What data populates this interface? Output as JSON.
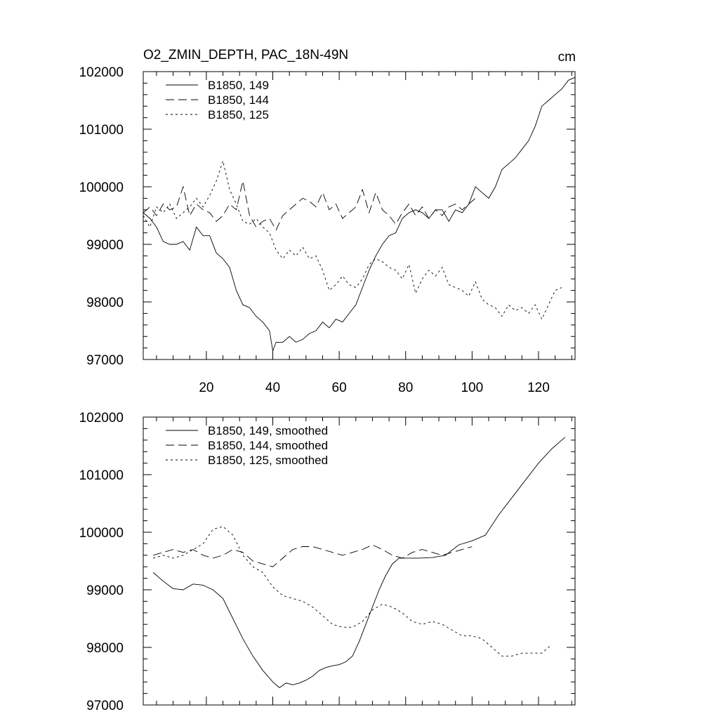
{
  "chart_data": [
    {
      "type": "line",
      "title": "O2_ZMIN_DEPTH, PAC_18N-49N",
      "units": "cm",
      "xlim": [
        1,
        131
      ],
      "ylim": [
        97000,
        102000
      ],
      "xticks": [
        20,
        40,
        60,
        80,
        100,
        120
      ],
      "yticks": [
        97000,
        98000,
        99000,
        100000,
        101000,
        102000
      ],
      "legend_position": "top-left",
      "series": [
        {
          "name": "B1850, 149",
          "style": "solid",
          "x": [
            1,
            3,
            5,
            7,
            9,
            11,
            13,
            15,
            17,
            19,
            21,
            23,
            25,
            27,
            29,
            31,
            33,
            35,
            37,
            39,
            40,
            41,
            43,
            45,
            47,
            49,
            51,
            53,
            55,
            57,
            59,
            61,
            63,
            65,
            67,
            69,
            71,
            73,
            75,
            77,
            79,
            81,
            83,
            85,
            87,
            89,
            91,
            93,
            95,
            97,
            99,
            101,
            103,
            105,
            107,
            109,
            111,
            113,
            115,
            117,
            119,
            121,
            123,
            125,
            127,
            129,
            131
          ],
          "y": [
            99550,
            99450,
            99300,
            99050,
            99000,
            99000,
            99050,
            98900,
            99300,
            99150,
            99150,
            98850,
            98750,
            98600,
            98200,
            97950,
            97900,
            97750,
            97650,
            97500,
            97150,
            97300,
            97300,
            97400,
            97300,
            97350,
            97450,
            97500,
            97650,
            97550,
            97700,
            97650,
            97800,
            97950,
            98250,
            98550,
            98800,
            99000,
            99150,
            99200,
            99450,
            99550,
            99600,
            99550,
            99450,
            99600,
            99600,
            99400,
            99600,
            99550,
            99700,
            100000,
            99900,
            99800,
            100000,
            100300,
            100400,
            100500,
            100650,
            100800,
            101050,
            101400,
            101500,
            101600,
            101700,
            101850,
            101900
          ]
        },
        {
          "name": "B1850, 144",
          "style": "dashed",
          "x": [
            1,
            3,
            5,
            7,
            9,
            11,
            13,
            15,
            17,
            19,
            21,
            23,
            25,
            27,
            29,
            31,
            33,
            35,
            37,
            39,
            41,
            43,
            45,
            47,
            49,
            51,
            53,
            55,
            57,
            59,
            61,
            63,
            65,
            67,
            69,
            71,
            73,
            75,
            77,
            79,
            81,
            83,
            85,
            87,
            89,
            91,
            93,
            95,
            97,
            99,
            101
          ],
          "y": [
            99550,
            99650,
            99500,
            99700,
            99600,
            99650,
            100000,
            99500,
            99700,
            99600,
            99550,
            99400,
            99500,
            99700,
            99600,
            100100,
            99500,
            99300,
            99400,
            99450,
            99250,
            99500,
            99600,
            99700,
            99800,
            99750,
            99650,
            99900,
            99600,
            99700,
            99450,
            99550,
            99650,
            99950,
            99550,
            99900,
            99600,
            99500,
            99350,
            99550,
            99700,
            99500,
            99650,
            99450,
            99600,
            99500,
            99650,
            99700,
            99600,
            99700,
            99800
          ]
        },
        {
          "name": "B1850, 125",
          "style": "dotted",
          "x": [
            1,
            3,
            5,
            7,
            9,
            11,
            13,
            15,
            17,
            19,
            21,
            23,
            25,
            27,
            29,
            31,
            33,
            35,
            37,
            39,
            41,
            43,
            45,
            47,
            49,
            51,
            53,
            55,
            57,
            59,
            61,
            63,
            65,
            67,
            69,
            71,
            73,
            75,
            77,
            79,
            81,
            83,
            85,
            87,
            89,
            91,
            93,
            95,
            97,
            99,
            101,
            103,
            105,
            107,
            109,
            111,
            113,
            115,
            117,
            119,
            121,
            123,
            125,
            127
          ],
          "y": [
            99500,
            99300,
            99650,
            99550,
            99700,
            99450,
            99550,
            99650,
            99800,
            99650,
            99850,
            100100,
            100450,
            99950,
            99700,
            99400,
            99350,
            99450,
            99300,
            99200,
            98900,
            98750,
            98900,
            98800,
            98950,
            98750,
            98800,
            98550,
            98200,
            98300,
            98450,
            98300,
            98250,
            98400,
            98650,
            98750,
            98700,
            98600,
            98550,
            98400,
            98650,
            98150,
            98400,
            98550,
            98450,
            98600,
            98300,
            98250,
            98200,
            98100,
            98350,
            98050,
            97950,
            97900,
            97750,
            97950,
            97850,
            97900,
            97800,
            97950,
            97700,
            97950,
            98200,
            98250
          ]
        }
      ]
    },
    {
      "type": "line",
      "title": "",
      "xlim": [
        1,
        131
      ],
      "ylim": [
        97000,
        102000
      ],
      "yticks": [
        97000,
        98000,
        99000,
        100000,
        101000,
        102000
      ],
      "legend_position": "top-left",
      "series": [
        {
          "name": "B1850, 149, smoothed",
          "style": "solid",
          "x": [
            4,
            7,
            10,
            13,
            16,
            19,
            22,
            25,
            28,
            31,
            34,
            37,
            40,
            42,
            44,
            46,
            48,
            50,
            52,
            54,
            56,
            58,
            60,
            62,
            64,
            66,
            68,
            70,
            72,
            74,
            76,
            78,
            80,
            84,
            88,
            92,
            96,
            100,
            104,
            108,
            112,
            116,
            120,
            124,
            128
          ],
          "y": [
            99300,
            99150,
            99020,
            99000,
            99100,
            99080,
            99000,
            98850,
            98500,
            98150,
            97850,
            97600,
            97400,
            97300,
            97380,
            97350,
            97380,
            97430,
            97500,
            97600,
            97650,
            97680,
            97700,
            97750,
            97850,
            98100,
            98400,
            98700,
            99000,
            99250,
            99450,
            99550,
            99550,
            99550,
            99560,
            99600,
            99780,
            99850,
            99950,
            100300,
            100600,
            100900,
            101200,
            101450,
            101650
          ]
        },
        {
          "name": "B1850, 144, smoothed",
          "style": "dashed",
          "x": [
            4,
            7,
            10,
            13,
            16,
            19,
            22,
            25,
            28,
            31,
            34,
            37,
            40,
            43,
            46,
            49,
            52,
            55,
            58,
            61,
            64,
            67,
            70,
            73,
            76,
            79,
            82,
            85,
            88,
            91,
            94,
            97,
            100
          ],
          "y": [
            99600,
            99650,
            99700,
            99650,
            99700,
            99600,
            99550,
            99600,
            99700,
            99650,
            99500,
            99450,
            99400,
            99550,
            99700,
            99750,
            99750,
            99700,
            99650,
            99600,
            99650,
            99700,
            99780,
            99700,
            99600,
            99550,
            99650,
            99700,
            99650,
            99600,
            99650,
            99700,
            99750
          ]
        },
        {
          "name": "B1850, 125, smoothed",
          "style": "dotted",
          "x": [
            4,
            7,
            10,
            13,
            16,
            19,
            22,
            25,
            28,
            31,
            34,
            37,
            40,
            43,
            46,
            49,
            52,
            55,
            58,
            61,
            64,
            67,
            70,
            73,
            76,
            79,
            82,
            85,
            88,
            91,
            94,
            97,
            100,
            103,
            106,
            109,
            112,
            115,
            118,
            121,
            124
          ],
          "y": [
            99550,
            99600,
            99550,
            99600,
            99700,
            99800,
            100050,
            100100,
            99950,
            99600,
            99400,
            99300,
            99050,
            98900,
            98850,
            98800,
            98700,
            98550,
            98400,
            98350,
            98350,
            98450,
            98650,
            98750,
            98700,
            98600,
            98450,
            98400,
            98450,
            98400,
            98300,
            98200,
            98200,
            98150,
            98000,
            97850,
            97850,
            97900,
            97900,
            97900,
            98050
          ]
        }
      ]
    }
  ]
}
